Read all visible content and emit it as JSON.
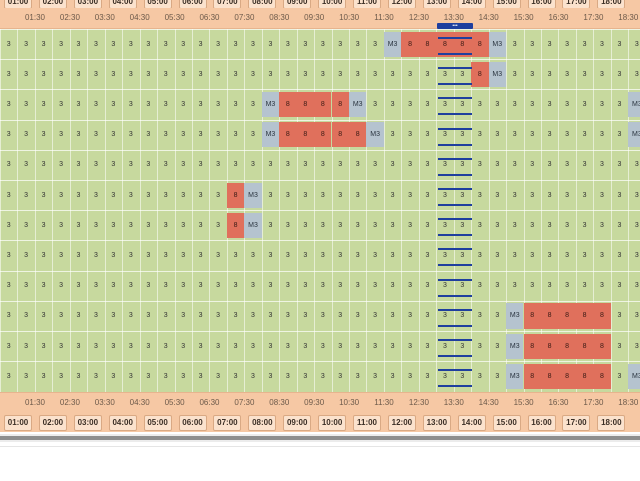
{
  "timeline": {
    "half_hour_labels": [
      "01:30",
      "02:30",
      "03:30",
      "04:30",
      "05:30",
      "06:30",
      "07:30",
      "08:30",
      "09:30",
      "10:30",
      "11:30",
      "12:30",
      "13:30",
      "14:30",
      "15:30",
      "16:30",
      "17:30",
      "18:30"
    ],
    "major_labels": [
      "01:00",
      "02:00",
      "03:00",
      "04:00",
      "05:00",
      "06:00",
      "07:00",
      "08:00",
      "09:00",
      "10:00",
      "11:00",
      "12:00",
      "13:00",
      "14:00",
      "15:00",
      "16:00",
      "17:00",
      "18:00"
    ],
    "current_marker_label": "•••"
  },
  "cell_values": {
    "default": "3",
    "busy": "8",
    "transition": "M3"
  },
  "colors": {
    "available": "#c7d99e",
    "busy": "#e0705c",
    "transition": "#b5c3cf",
    "header": "#f6c8a4",
    "now_marker": "#1f3f9e"
  },
  "rows": [
    {
      "cells": [
        "3",
        "3",
        "3",
        "3",
        "3",
        "3",
        "3",
        "3",
        "3",
        "3",
        "3",
        "3",
        "3",
        "3",
        "3",
        "3",
        "3",
        "3",
        "3",
        "3",
        "3",
        "3",
        "M3",
        "8",
        "8",
        "8",
        "8",
        "8",
        "M3",
        "3",
        "3",
        "3",
        "3",
        "3",
        "3",
        "3",
        "3"
      ]
    },
    {
      "cells": [
        "3",
        "3",
        "3",
        "3",
        "3",
        "3",
        "3",
        "3",
        "3",
        "3",
        "3",
        "3",
        "3",
        "3",
        "3",
        "3",
        "3",
        "3",
        "3",
        "3",
        "3",
        "3",
        "3",
        "3",
        "3",
        "3",
        "3",
        "8",
        "M3",
        "3",
        "3",
        "3",
        "3",
        "3",
        "3",
        "3",
        "3"
      ]
    },
    {
      "cells": [
        "3",
        "3",
        "3",
        "3",
        "3",
        "3",
        "3",
        "3",
        "3",
        "3",
        "3",
        "3",
        "3",
        "3",
        "3",
        "M3",
        "8",
        "8",
        "8",
        "8",
        "M3",
        "3",
        "3",
        "3",
        "3",
        "3",
        "3",
        "3",
        "3",
        "3",
        "3",
        "3",
        "3",
        "3",
        "3",
        "3",
        "M3"
      ]
    },
    {
      "cells": [
        "3",
        "3",
        "3",
        "3",
        "3",
        "3",
        "3",
        "3",
        "3",
        "3",
        "3",
        "3",
        "3",
        "3",
        "3",
        "M3",
        "8",
        "8",
        "8",
        "8",
        "8",
        "M3",
        "3",
        "3",
        "3",
        "3",
        "3",
        "3",
        "3",
        "3",
        "3",
        "3",
        "3",
        "3",
        "3",
        "3",
        "M3"
      ]
    },
    {
      "cells": [
        "3",
        "3",
        "3",
        "3",
        "3",
        "3",
        "3",
        "3",
        "3",
        "3",
        "3",
        "3",
        "3",
        "3",
        "3",
        "3",
        "3",
        "3",
        "3",
        "3",
        "3",
        "3",
        "3",
        "3",
        "3",
        "3",
        "3",
        "3",
        "3",
        "3",
        "3",
        "3",
        "3",
        "3",
        "3",
        "3",
        "3"
      ]
    },
    {
      "cells": [
        "3",
        "3",
        "3",
        "3",
        "3",
        "3",
        "3",
        "3",
        "3",
        "3",
        "3",
        "3",
        "3",
        "8",
        "M3",
        "3",
        "3",
        "3",
        "3",
        "3",
        "3",
        "3",
        "3",
        "3",
        "3",
        "3",
        "3",
        "3",
        "3",
        "3",
        "3",
        "3",
        "3",
        "3",
        "3",
        "3",
        "3"
      ]
    },
    {
      "cells": [
        "3",
        "3",
        "3",
        "3",
        "3",
        "3",
        "3",
        "3",
        "3",
        "3",
        "3",
        "3",
        "3",
        "8",
        "M3",
        "3",
        "3",
        "3",
        "3",
        "3",
        "3",
        "3",
        "3",
        "3",
        "3",
        "3",
        "3",
        "3",
        "3",
        "3",
        "3",
        "3",
        "3",
        "3",
        "3",
        "3",
        "3"
      ]
    },
    {
      "cells": [
        "3",
        "3",
        "3",
        "3",
        "3",
        "3",
        "3",
        "3",
        "3",
        "3",
        "3",
        "3",
        "3",
        "3",
        "3",
        "3",
        "3",
        "3",
        "3",
        "3",
        "3",
        "3",
        "3",
        "3",
        "3",
        "3",
        "3",
        "3",
        "3",
        "3",
        "3",
        "3",
        "3",
        "3",
        "3",
        "3",
        "3"
      ]
    },
    {
      "cells": [
        "3",
        "3",
        "3",
        "3",
        "3",
        "3",
        "3",
        "3",
        "3",
        "3",
        "3",
        "3",
        "3",
        "3",
        "3",
        "3",
        "3",
        "3",
        "3",
        "3",
        "3",
        "3",
        "3",
        "3",
        "3",
        "3",
        "3",
        "3",
        "3",
        "3",
        "3",
        "3",
        "3",
        "3",
        "3",
        "3",
        "3"
      ]
    },
    {
      "cells": [
        "3",
        "3",
        "3",
        "3",
        "3",
        "3",
        "3",
        "3",
        "3",
        "3",
        "3",
        "3",
        "3",
        "3",
        "3",
        "3",
        "3",
        "3",
        "3",
        "3",
        "3",
        "3",
        "3",
        "3",
        "3",
        "3",
        "3",
        "3",
        "3",
        "M3",
        "8",
        "8",
        "8",
        "8",
        "8",
        "3",
        "3"
      ]
    },
    {
      "cells": [
        "3",
        "3",
        "3",
        "3",
        "3",
        "3",
        "3",
        "3",
        "3",
        "3",
        "3",
        "3",
        "3",
        "3",
        "3",
        "3",
        "3",
        "3",
        "3",
        "3",
        "3",
        "3",
        "3",
        "3",
        "3",
        "3",
        "3",
        "3",
        "3",
        "M3",
        "8",
        "8",
        "8",
        "8",
        "8",
        "3",
        "3"
      ]
    },
    {
      "cells": [
        "3",
        "3",
        "3",
        "3",
        "3",
        "3",
        "3",
        "3",
        "3",
        "3",
        "3",
        "3",
        "3",
        "3",
        "3",
        "3",
        "3",
        "3",
        "3",
        "3",
        "3",
        "3",
        "3",
        "3",
        "3",
        "3",
        "3",
        "3",
        "3",
        "M3",
        "8",
        "8",
        "8",
        "8",
        "8",
        "3",
        "M3"
      ]
    }
  ]
}
